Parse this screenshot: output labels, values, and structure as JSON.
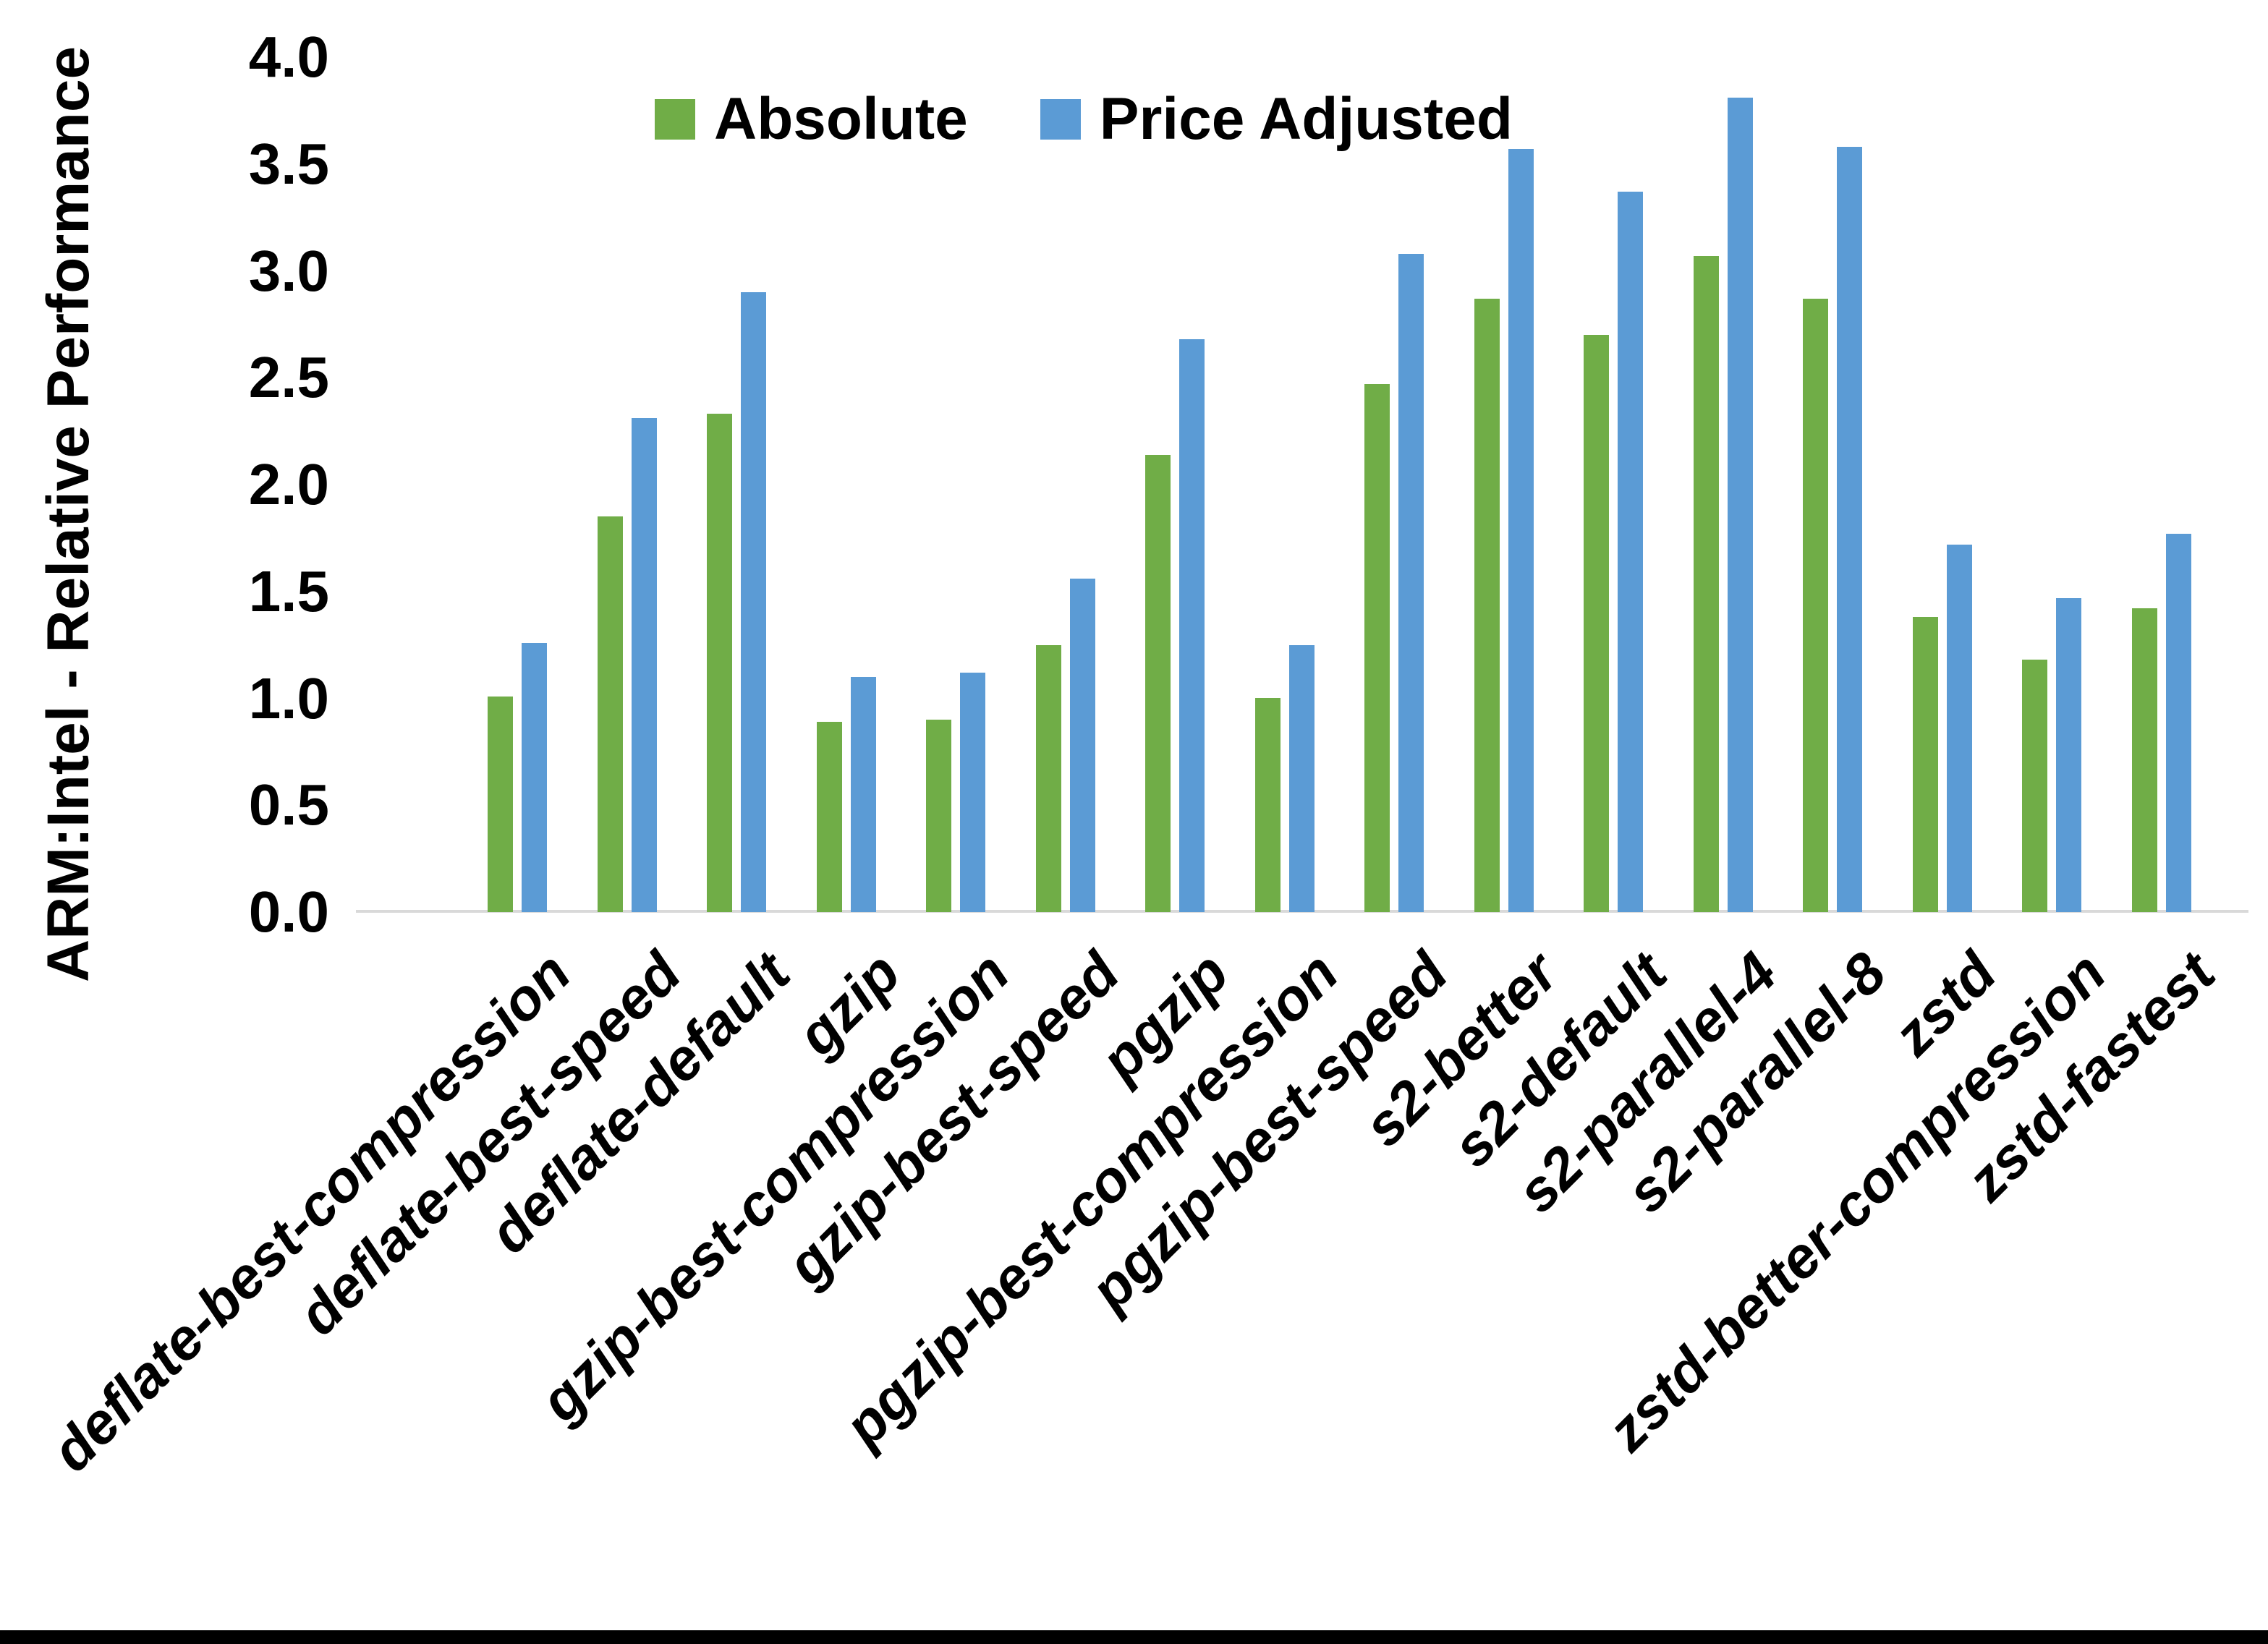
{
  "chart_data": {
    "type": "bar",
    "title": "",
    "xlabel": "",
    "ylabel": "ARM:Intel - Relative Performance",
    "ylim": [
      0.0,
      4.0
    ],
    "ytick_step": 0.5,
    "ytick_labels": [
      "4.0",
      "3.5",
      "3.0",
      "2.5",
      "2.0",
      "1.5",
      "1.0",
      "0.5",
      "0.0"
    ],
    "grid": false,
    "legend_position": "top-center",
    "categories": [
      "deflate-best-compression",
      "deflate-best-speed",
      "deflate-default",
      "gzip",
      "gzip-best-compression",
      "gzip-best-speed",
      "pgzip",
      "pgzip-best-compression",
      "pgzip-best-speed",
      "s2-better",
      "s2-default",
      "s2-parallel-4",
      "s2-parallel-8",
      "zstd",
      "zstd-better-compression",
      "zstd-fastest"
    ],
    "series": [
      {
        "name": "Absolute",
        "color": "#70ad47",
        "values": [
          1.01,
          1.85,
          2.33,
          0.89,
          0.9,
          1.25,
          2.14,
          1.0,
          2.47,
          2.87,
          2.7,
          3.07,
          2.87,
          1.38,
          1.18,
          1.42
        ]
      },
      {
        "name": "Price Adjusted",
        "color": "#5b9bd5",
        "values": [
          1.26,
          2.31,
          2.9,
          1.1,
          1.12,
          1.56,
          2.68,
          1.25,
          3.08,
          3.57,
          3.37,
          3.81,
          3.58,
          1.72,
          1.47,
          1.77
        ]
      }
    ]
  },
  "colors": {
    "background": "#ffffff",
    "text": "#000000",
    "axis_line": "#d9d9d9",
    "bottom_strip": "#000000"
  }
}
